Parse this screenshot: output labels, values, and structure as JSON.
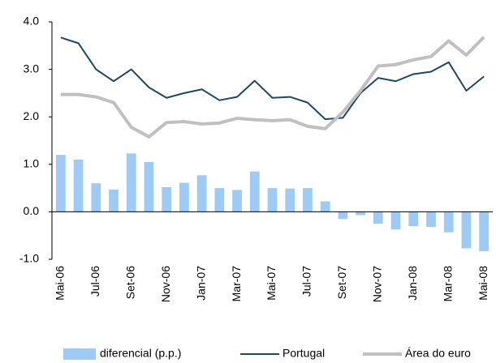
{
  "chart_data": {
    "type": "bar",
    "categories": [
      "Mai-06",
      null,
      "Jul-06",
      null,
      "Set-06",
      null,
      "Nov-06",
      null,
      "Jan-07",
      null,
      "Mar-07",
      null,
      "Mai-07",
      null,
      "Jul-07",
      null,
      "Set-07",
      null,
      "Nov-07",
      null,
      "Jan-08",
      null,
      "Mar-08",
      null,
      "Mai-08"
    ],
    "series": [
      {
        "name": "diferencial (p.p.)",
        "type": "bar",
        "color": "#9dcbf5",
        "values": [
          1.2,
          1.1,
          0.6,
          0.47,
          1.23,
          1.05,
          0.52,
          0.61,
          0.77,
          0.5,
          0.46,
          0.85,
          0.5,
          0.49,
          0.5,
          0.22,
          -0.15,
          -0.07,
          -0.25,
          -0.37,
          -0.3,
          -0.32,
          -0.43,
          -0.77,
          -0.83
        ]
      },
      {
        "name": "Portugal",
        "type": "line",
        "color": "#1c4a66",
        "values": [
          3.67,
          3.55,
          3.0,
          2.75,
          3.0,
          2.62,
          2.4,
          2.5,
          2.58,
          2.35,
          2.42,
          2.76,
          2.4,
          2.42,
          2.3,
          1.95,
          1.98,
          2.5,
          2.82,
          2.75,
          2.9,
          2.95,
          3.15,
          2.55,
          2.85
        ]
      },
      {
        "name": "Área do euro",
        "type": "line",
        "color": "#c0c0c0",
        "values": [
          2.47,
          2.47,
          2.42,
          2.3,
          1.78,
          1.58,
          1.88,
          1.9,
          1.85,
          1.87,
          1.97,
          1.94,
          1.92,
          1.94,
          1.8,
          1.75,
          2.1,
          2.55,
          3.07,
          3.1,
          3.2,
          3.27,
          3.6,
          3.3,
          3.68
        ]
      }
    ],
    "ylim": [
      -1.0,
      4.0
    ],
    "yticks": [
      {
        "value": -1,
        "label": "-1.0"
      },
      {
        "value": 0,
        "label": "0.0"
      },
      {
        "value": 1,
        "label": "1.0"
      },
      {
        "value": 2,
        "label": "2.0"
      },
      {
        "value": 3,
        "label": "3.0"
      },
      {
        "value": 4,
        "label": "4.0"
      }
    ],
    "legend": "bottom"
  }
}
